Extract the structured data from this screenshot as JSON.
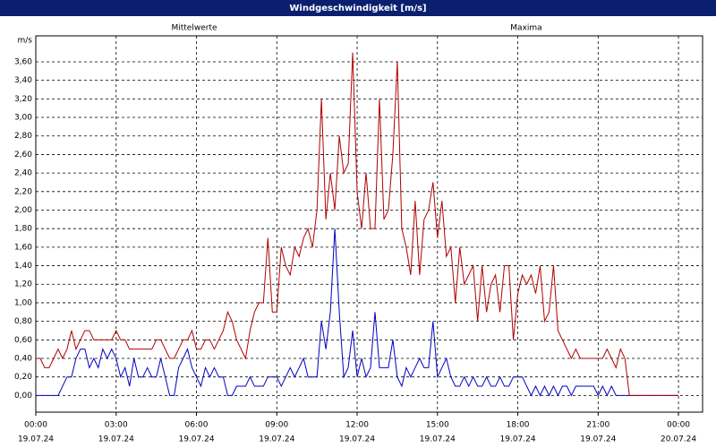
{
  "chart_data": {
    "type": "line",
    "title": "Windgeschwindigkeit [m/s]",
    "y_label": "m/s",
    "x": [
      0,
      10,
      20,
      30,
      40,
      50,
      60,
      70,
      80,
      90,
      100,
      110,
      120,
      130,
      140,
      150,
      160,
      170,
      180,
      190,
      200,
      210,
      220,
      230,
      240,
      250,
      260,
      270,
      280,
      290,
      300,
      310,
      320,
      330,
      340,
      350,
      360,
      370,
      380,
      390,
      400,
      410,
      420,
      430,
      440,
      450,
      460,
      470,
      480,
      490,
      500,
      510,
      520,
      530,
      540,
      550,
      560,
      570,
      580,
      590,
      600,
      610,
      620,
      630,
      640,
      650,
      660,
      670,
      680,
      690,
      700,
      710,
      720,
      730,
      740,
      750,
      760,
      770,
      780,
      790,
      800,
      810,
      820,
      830,
      840,
      850,
      860,
      870,
      880,
      890,
      900,
      910,
      920,
      930,
      940,
      950,
      960,
      970,
      980,
      990,
      1000,
      1010,
      1020,
      1030,
      1040,
      1050,
      1060,
      1070,
      1080,
      1090,
      1100,
      1110,
      1120,
      1130,
      1140,
      1150,
      1160,
      1170,
      1180,
      1190,
      1200,
      1210,
      1220,
      1230,
      1240,
      1250,
      1260,
      1270,
      1280,
      1290,
      1300,
      1310,
      1320,
      1330,
      1340,
      1350,
      1360,
      1370,
      1380,
      1390,
      1400,
      1410,
      1420,
      1430,
      1440
    ],
    "series": [
      {
        "name": "Mittelwerte",
        "color": "#0000c0",
        "values": [
          0,
          0,
          0,
          0,
          0,
          0,
          0.1,
          0.2,
          0.2,
          0.4,
          0.5,
          0.5,
          0.3,
          0.4,
          0.3,
          0.5,
          0.4,
          0.5,
          0.4,
          0.2,
          0.3,
          0.1,
          0.4,
          0.2,
          0.2,
          0.3,
          0.2,
          0.2,
          0.4,
          0.2,
          0,
          0,
          0.3,
          0.4,
          0.5,
          0.3,
          0.2,
          0.1,
          0.3,
          0.2,
          0.3,
          0.2,
          0.2,
          0,
          0,
          0.1,
          0.1,
          0.1,
          0.2,
          0.1,
          0.1,
          0.1,
          0.2,
          0.2,
          0.2,
          0.1,
          0.2,
          0.3,
          0.2,
          0.3,
          0.4,
          0.2,
          0.2,
          0.2,
          0.8,
          0.5,
          0.9,
          1.8,
          0.9,
          0.2,
          0.3,
          0.7,
          0.2,
          0.4,
          0.2,
          0.3,
          0.9,
          0.3,
          0.3,
          0.3,
          0.6,
          0.2,
          0.1,
          0.3,
          0.2,
          0.3,
          0.4,
          0.3,
          0.3,
          0.8,
          0.2,
          0.3,
          0.4,
          0.2,
          0.1,
          0.1,
          0.2,
          0.1,
          0.2,
          0.1,
          0.1,
          0.2,
          0.1,
          0.1,
          0.2,
          0.1,
          0.1,
          0.2,
          0.2,
          0.2,
          0.1,
          0,
          0.1,
          0,
          0.1,
          0,
          0.1,
          0,
          0.1,
          0.1,
          0,
          0.1,
          0.1,
          0.1,
          0.1,
          0.1,
          0,
          0.1,
          0,
          0.1,
          0,
          0,
          0,
          0,
          0,
          0,
          0,
          0,
          0,
          0,
          0,
          0,
          0,
          0,
          0
        ]
      },
      {
        "name": "Maxima",
        "color": "#b00000",
        "values": [
          0.4,
          0.4,
          0.3,
          0.3,
          0.4,
          0.5,
          0.4,
          0.5,
          0.7,
          0.5,
          0.6,
          0.7,
          0.7,
          0.6,
          0.6,
          0.6,
          0.6,
          0.6,
          0.7,
          0.6,
          0.6,
          0.5,
          0.5,
          0.5,
          0.5,
          0.5,
          0.5,
          0.6,
          0.6,
          0.5,
          0.4,
          0.4,
          0.5,
          0.6,
          0.6,
          0.7,
          0.5,
          0.5,
          0.6,
          0.6,
          0.5,
          0.6,
          0.7,
          0.9,
          0.8,
          0.6,
          0.5,
          0.4,
          0.7,
          0.9,
          1.0,
          1.0,
          1.7,
          0.9,
          0.9,
          1.6,
          1.4,
          1.3,
          1.6,
          1.5,
          1.7,
          1.8,
          1.6,
          2.0,
          3.2,
          1.9,
          2.4,
          2.0,
          2.8,
          2.4,
          2.5,
          3.7,
          2.2,
          1.8,
          2.4,
          1.8,
          1.8,
          3.2,
          1.9,
          2.0,
          2.6,
          3.6,
          1.8,
          1.6,
          1.3,
          2.1,
          1.3,
          1.9,
          2.0,
          2.3,
          1.7,
          2.1,
          1.5,
          1.6,
          1.0,
          1.6,
          1.2,
          1.3,
          1.4,
          0.8,
          1.4,
          0.9,
          1.2,
          1.3,
          0.9,
          1.4,
          1.4,
          0.6,
          1.1,
          1.3,
          1.2,
          1.3,
          1.1,
          1.4,
          0.8,
          0.9,
          1.4,
          0.7,
          0.6,
          0.5,
          0.4,
          0.5,
          0.4,
          0.4,
          0.4,
          0.4,
          0.4,
          0.4,
          0.5,
          0.4,
          0.3,
          0.5,
          0.4,
          0,
          0,
          0,
          0,
          0,
          0,
          0,
          0,
          0,
          0,
          0,
          0
        ]
      }
    ],
    "xlim": [
      0,
      1494
    ],
    "ylim": [
      -0.18,
      3.88
    ],
    "xticks": [
      {
        "value": 0,
        "label": "00:00"
      },
      {
        "value": 180,
        "label": "03:00"
      },
      {
        "value": 360,
        "label": "06:00"
      },
      {
        "value": 540,
        "label": "09:00"
      },
      {
        "value": 720,
        "label": "12:00"
      },
      {
        "value": 900,
        "label": "15:00"
      },
      {
        "value": 1080,
        "label": "18:00"
      },
      {
        "value": 1260,
        "label": "21:00"
      },
      {
        "value": 1440,
        "label": "00:00"
      }
    ],
    "xtick_dates": [
      "19.07.24",
      "19.07.24",
      "19.07.24",
      "19.07.24",
      "19.07.24",
      "19.07.24",
      "19.07.24",
      "19.07.24",
      "20.07.24"
    ],
    "yticks": [
      {
        "value": 0,
        "label": "0,00"
      },
      {
        "value": 0.2,
        "label": "0,20"
      },
      {
        "value": 0.4,
        "label": "0,40"
      },
      {
        "value": 0.6,
        "label": "0,60"
      },
      {
        "value": 0.8,
        "label": "0,80"
      },
      {
        "value": 1.0,
        "label": "1,00"
      },
      {
        "value": 1.2,
        "label": "1,20"
      },
      {
        "value": 1.4,
        "label": "1,40"
      },
      {
        "value": 1.6,
        "label": "1,60"
      },
      {
        "value": 1.8,
        "label": "1,80"
      },
      {
        "value": 2.0,
        "label": "2,00"
      },
      {
        "value": 2.2,
        "label": "2,20"
      },
      {
        "value": 2.4,
        "label": "2,40"
      },
      {
        "value": 2.6,
        "label": "2,60"
      },
      {
        "value": 2.8,
        "label": "2,80"
      },
      {
        "value": 3.0,
        "label": "3,00"
      },
      {
        "value": 3.2,
        "label": "3,20"
      },
      {
        "value": 3.4,
        "label": "3,40"
      },
      {
        "value": 3.6,
        "label": "3,60"
      }
    ],
    "grid": true
  }
}
